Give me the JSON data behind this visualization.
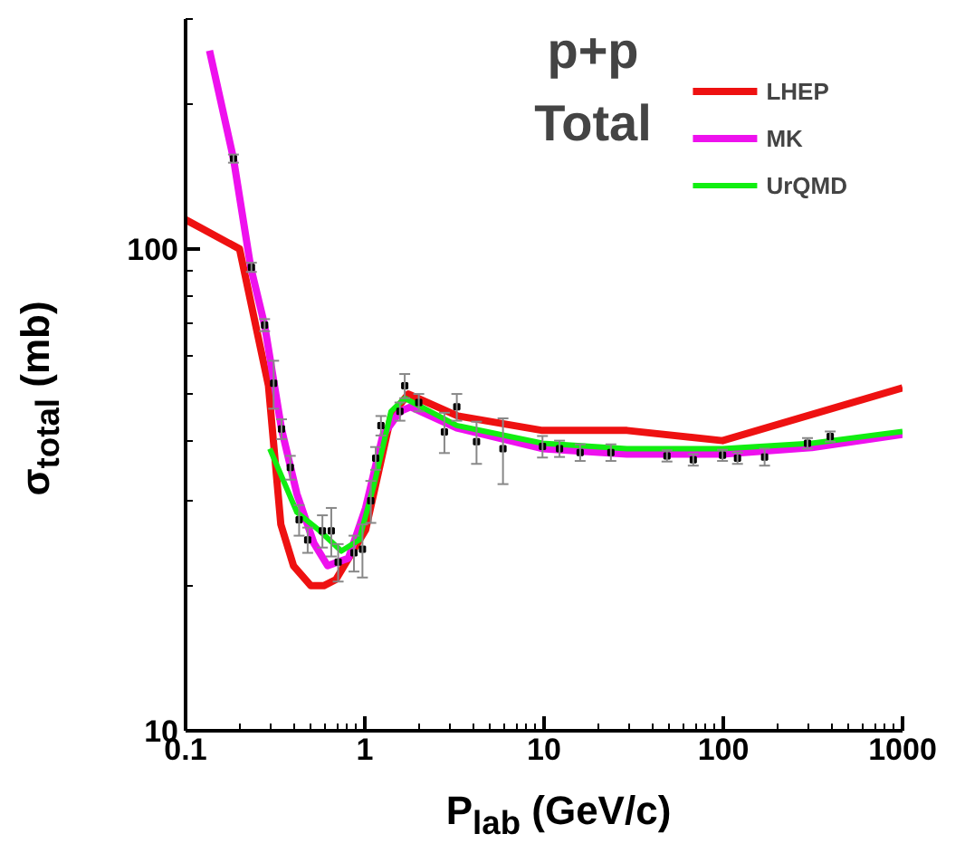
{
  "chart_data": {
    "type": "line",
    "title": "p+p",
    "subtitle": "Total",
    "xlabel": "P$_{lab}$ (GeV/c)",
    "ylabel": "σ$_{total}$ (mb)",
    "log": "xy",
    "xlim": [
      0.1,
      1000
    ],
    "ylim": [
      10,
      300
    ],
    "xticks": [
      0.1,
      1,
      10,
      100,
      1000
    ],
    "yticks": [
      10,
      100
    ],
    "legend": "top right",
    "grid": false,
    "line_style": "solid",
    "series": [
      {
        "name": "LHEP",
        "color": "#ee1111",
        "x": [
          0.1,
          0.2,
          0.29,
          0.34,
          0.4,
          0.5,
          0.59,
          0.69,
          1.01,
          1.4,
          1.75,
          3.3,
          9.8,
          29,
          99,
          1000
        ],
        "values": [
          115,
          100,
          52,
          26.8,
          22,
          20,
          20,
          20.6,
          26.1,
          45,
          50,
          45,
          42,
          42,
          40,
          51.5
        ]
      },
      {
        "name": "MK",
        "color": "#ee11ee",
        "x": [
          0.136,
          0.185,
          0.231,
          0.276,
          0.343,
          0.418,
          0.52,
          0.62,
          0.81,
          1.01,
          1.26,
          1.57,
          1.8,
          3.26,
          9.8,
          29,
          99,
          312,
          1000
        ],
        "values": [
          258,
          154,
          91.6,
          69.5,
          42.3,
          31,
          24.5,
          22,
          22.8,
          29,
          41,
          46,
          47,
          42.5,
          38.5,
          37.5,
          37.5,
          38.7,
          41.2
        ]
      },
      {
        "name": "UrQMD",
        "color": "#11ee11",
        "x": [
          0.295,
          0.418,
          0.56,
          0.74,
          0.93,
          1.13,
          1.4,
          1.67,
          3.26,
          9.8,
          29,
          99,
          312,
          1000
        ],
        "values": [
          38.5,
          28.4,
          26,
          23.6,
          24.9,
          32.6,
          46,
          49,
          43,
          39.5,
          38.5,
          38.5,
          39.5,
          41.8
        ]
      },
      {
        "type": "scatter",
        "marker": "square",
        "color": "#000000",
        "x": [
          0.185,
          0.233,
          0.276,
          0.31,
          0.343,
          0.384,
          0.43,
          0.48,
          0.58,
          0.65,
          0.71,
          0.87,
          0.97,
          1.08,
          1.15,
          1.23,
          1.57,
          1.67,
          2.0,
          2.78,
          3.26,
          4.2,
          5.9,
          9.8,
          12.2,
          15.9,
          23.6,
          48.5,
          68,
          99,
          120,
          170,
          295,
          395
        ],
        "values": [
          154,
          91.6,
          69.5,
          52.6,
          42.3,
          35.2,
          27.4,
          24.9,
          26,
          26,
          22.4,
          23.4,
          23.8,
          30,
          36.8,
          43,
          46,
          52,
          48,
          41.7,
          47,
          39.8,
          38.5,
          38.9,
          38.5,
          37.8,
          37.8,
          37.2,
          36.5,
          37.3,
          36.8,
          37,
          39.5,
          40.8
        ],
        "errors": [
          3,
          2,
          2,
          6,
          2,
          2,
          2,
          1.5,
          2,
          3,
          2,
          2,
          3,
          3,
          2,
          2,
          2,
          3,
          2,
          4,
          3,
          4,
          6,
          2,
          1.5,
          1.5,
          1.5,
          1,
          1,
          1,
          1,
          1.5,
          1,
          1
        ]
      }
    ]
  }
}
